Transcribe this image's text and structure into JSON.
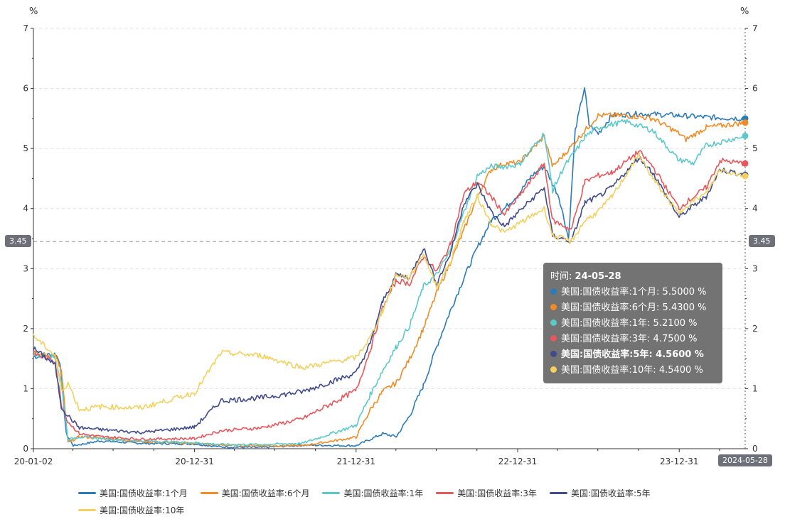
{
  "chart_data": {
    "type": "line",
    "y_unit_left": "%",
    "y_unit_right": "%",
    "ylim": [
      0,
      7
    ],
    "y_ticks": [
      "0",
      "1",
      "2",
      "3",
      "4",
      "5",
      "6",
      "7"
    ],
    "x_tick_labels": [
      "20-01-02",
      "20-12-31",
      "21-12-31",
      "22-12-31",
      "23-12-31"
    ],
    "x_range": [
      "2020-01-02",
      "2024-05-28"
    ],
    "axis_pointer": {
      "y_value": "3.45",
      "x_value": "2024-05-28"
    },
    "grid": "dashed-horizontal",
    "legend_position": "bottom",
    "series": [
      {
        "name": "美国:国债收益率:1个月",
        "color": "#2b7bb9",
        "points": [
          [
            "2020-01-02",
            1.53
          ],
          [
            "2020-02-20",
            1.58
          ],
          [
            "2020-03-02",
            1.45
          ],
          [
            "2020-03-16",
            0.25
          ],
          [
            "2020-04-01",
            0.05
          ],
          [
            "2020-06-01",
            0.13
          ],
          [
            "2020-09-01",
            0.09
          ],
          [
            "2020-12-31",
            0.08
          ],
          [
            "2021-03-01",
            0.03
          ],
          [
            "2021-06-01",
            0.02
          ],
          [
            "2021-09-01",
            0.06
          ],
          [
            "2021-12-31",
            0.05
          ],
          [
            "2022-03-01",
            0.25
          ],
          [
            "2022-04-01",
            0.2
          ],
          [
            "2022-05-01",
            0.55
          ],
          [
            "2022-06-01",
            1.05
          ],
          [
            "2022-07-01",
            1.7
          ],
          [
            "2022-08-01",
            2.3
          ],
          [
            "2022-09-01",
            2.85
          ],
          [
            "2022-10-01",
            3.35
          ],
          [
            "2022-11-01",
            3.8
          ],
          [
            "2022-12-01",
            4.0
          ],
          [
            "2023-01-03",
            4.25
          ],
          [
            "2023-02-01",
            4.55
          ],
          [
            "2023-03-01",
            4.7
          ],
          [
            "2023-04-03",
            4.2
          ],
          [
            "2023-04-25",
            3.5
          ],
          [
            "2023-05-10",
            5.3
          ],
          [
            "2023-05-31",
            6.02
          ],
          [
            "2023-06-10",
            5.4
          ],
          [
            "2023-07-01",
            5.25
          ],
          [
            "2023-08-01",
            5.55
          ],
          [
            "2023-10-01",
            5.58
          ],
          [
            "2023-12-31",
            5.55
          ],
          [
            "2024-03-01",
            5.52
          ],
          [
            "2024-05-28",
            5.5
          ]
        ]
      },
      {
        "name": "美国:国债收益率:6个月",
        "color": "#f28b25",
        "points": [
          [
            "2020-01-02",
            1.58
          ],
          [
            "2020-02-20",
            1.55
          ],
          [
            "2020-03-05",
            1.3
          ],
          [
            "2020-03-20",
            0.1
          ],
          [
            "2020-04-15",
            0.2
          ],
          [
            "2020-06-01",
            0.18
          ],
          [
            "2020-09-01",
            0.12
          ],
          [
            "2020-12-31",
            0.09
          ],
          [
            "2021-03-01",
            0.06
          ],
          [
            "2021-06-01",
            0.05
          ],
          [
            "2021-09-01",
            0.05
          ],
          [
            "2021-12-31",
            0.19
          ],
          [
            "2022-02-01",
            0.65
          ],
          [
            "2022-03-01",
            0.95
          ],
          [
            "2022-04-01",
            1.1
          ],
          [
            "2022-05-01",
            1.5
          ],
          [
            "2022-06-01",
            2.0
          ],
          [
            "2022-07-01",
            2.6
          ],
          [
            "2022-08-01",
            3.1
          ],
          [
            "2022-09-01",
            3.65
          ],
          [
            "2022-10-01",
            4.2
          ],
          [
            "2022-11-01",
            4.65
          ],
          [
            "2022-12-01",
            4.75
          ],
          [
            "2023-01-03",
            4.76
          ],
          [
            "2023-03-01",
            5.2
          ],
          [
            "2023-03-20",
            4.7
          ],
          [
            "2023-04-15",
            4.9
          ],
          [
            "2023-06-01",
            5.3
          ],
          [
            "2023-07-01",
            5.55
          ],
          [
            "2023-09-01",
            5.55
          ],
          [
            "2023-11-01",
            5.5
          ],
          [
            "2023-12-31",
            5.25
          ],
          [
            "2024-01-15",
            5.15
          ],
          [
            "2024-03-01",
            5.35
          ],
          [
            "2024-05-28",
            5.43
          ]
        ]
      },
      {
        "name": "美国:国债收益率:1年",
        "color": "#5bc8ca",
        "points": [
          [
            "2020-01-02",
            1.56
          ],
          [
            "2020-02-20",
            1.52
          ],
          [
            "2020-03-05",
            1.1
          ],
          [
            "2020-03-20",
            0.15
          ],
          [
            "2020-04-15",
            0.2
          ],
          [
            "2020-06-01",
            0.17
          ],
          [
            "2020-09-01",
            0.13
          ],
          [
            "2020-12-31",
            0.1
          ],
          [
            "2021-03-01",
            0.07
          ],
          [
            "2021-06-01",
            0.07
          ],
          [
            "2021-09-01",
            0.09
          ],
          [
            "2021-12-31",
            0.39
          ],
          [
            "2022-02-01",
            0.9
          ],
          [
            "2022-03-01",
            1.3
          ],
          [
            "2022-04-01",
            1.7
          ],
          [
            "2022-05-01",
            2.05
          ],
          [
            "2022-06-01",
            2.7
          ],
          [
            "2022-07-01",
            2.9
          ],
          [
            "2022-08-01",
            3.3
          ],
          [
            "2022-09-01",
            3.95
          ],
          [
            "2022-10-01",
            4.55
          ],
          [
            "2022-11-01",
            4.7
          ],
          [
            "2022-12-01",
            4.7
          ],
          [
            "2023-01-03",
            4.73
          ],
          [
            "2023-03-01",
            5.25
          ],
          [
            "2023-03-20",
            4.3
          ],
          [
            "2023-04-15",
            4.7
          ],
          [
            "2023-05-15",
            5.0
          ],
          [
            "2023-06-01",
            5.2
          ],
          [
            "2023-07-01",
            5.35
          ],
          [
            "2023-09-01",
            5.45
          ],
          [
            "2023-11-01",
            5.3
          ],
          [
            "2023-12-31",
            4.8
          ],
          [
            "2024-01-15",
            4.8
          ],
          [
            "2024-02-01",
            4.75
          ],
          [
            "2024-03-01",
            5.05
          ],
          [
            "2024-05-28",
            5.21
          ]
        ]
      },
      {
        "name": "美国:国债收益率:3年",
        "color": "#e8575c",
        "points": [
          [
            "2020-01-02",
            1.59
          ],
          [
            "2020-02-20",
            1.45
          ],
          [
            "2020-03-05",
            0.75
          ],
          [
            "2020-03-20",
            0.45
          ],
          [
            "2020-04-15",
            0.25
          ],
          [
            "2020-06-01",
            0.2
          ],
          [
            "2020-09-01",
            0.16
          ],
          [
            "2020-12-31",
            0.17
          ],
          [
            "2021-03-01",
            0.3
          ],
          [
            "2021-06-01",
            0.35
          ],
          [
            "2021-09-01",
            0.5
          ],
          [
            "2021-12-31",
            0.97
          ],
          [
            "2022-02-01",
            1.65
          ],
          [
            "2022-03-01",
            2.35
          ],
          [
            "2022-04-01",
            2.8
          ],
          [
            "2022-05-01",
            2.75
          ],
          [
            "2022-06-01",
            3.2
          ],
          [
            "2022-07-01",
            2.95
          ],
          [
            "2022-08-01",
            3.4
          ],
          [
            "2022-09-01",
            4.25
          ],
          [
            "2022-10-01",
            4.45
          ],
          [
            "2022-11-01",
            4.2
          ],
          [
            "2022-12-01",
            3.9
          ],
          [
            "2023-01-03",
            4.2
          ],
          [
            "2023-03-01",
            4.75
          ],
          [
            "2023-03-20",
            3.8
          ],
          [
            "2023-05-01",
            3.65
          ],
          [
            "2023-06-01",
            4.45
          ],
          [
            "2023-07-01",
            4.55
          ],
          [
            "2023-08-01",
            4.6
          ],
          [
            "2023-10-01",
            4.95
          ],
          [
            "2023-11-01",
            4.7
          ],
          [
            "2023-12-31",
            4.0
          ],
          [
            "2024-01-15",
            4.1
          ],
          [
            "2024-03-01",
            4.35
          ],
          [
            "2024-04-01",
            4.8
          ],
          [
            "2024-05-28",
            4.75
          ]
        ]
      },
      {
        "name": "美国:国债收益率:5年",
        "color": "#3f4b8c",
        "points": [
          [
            "2020-01-02",
            1.67
          ],
          [
            "2020-02-20",
            1.4
          ],
          [
            "2020-03-05",
            0.7
          ],
          [
            "2020-03-20",
            0.55
          ],
          [
            "2020-04-15",
            0.35
          ],
          [
            "2020-06-01",
            0.32
          ],
          [
            "2020-09-01",
            0.27
          ],
          [
            "2020-12-31",
            0.36
          ],
          [
            "2021-03-01",
            0.8
          ],
          [
            "2021-06-01",
            0.85
          ],
          [
            "2021-09-01",
            0.95
          ],
          [
            "2021-12-31",
            1.26
          ],
          [
            "2022-02-01",
            1.75
          ],
          [
            "2022-03-01",
            2.45
          ],
          [
            "2022-04-01",
            2.9
          ],
          [
            "2022-05-01",
            2.85
          ],
          [
            "2022-06-01",
            3.35
          ],
          [
            "2022-07-01",
            2.75
          ],
          [
            "2022-08-01",
            3.25
          ],
          [
            "2022-09-01",
            4.1
          ],
          [
            "2022-10-01",
            4.4
          ],
          [
            "2022-11-01",
            3.95
          ],
          [
            "2022-12-01",
            3.7
          ],
          [
            "2023-01-03",
            3.95
          ],
          [
            "2023-03-01",
            4.35
          ],
          [
            "2023-03-20",
            3.55
          ],
          [
            "2023-05-01",
            3.45
          ],
          [
            "2023-06-01",
            4.1
          ],
          [
            "2023-07-01",
            4.2
          ],
          [
            "2023-08-01",
            4.35
          ],
          [
            "2023-10-01",
            4.85
          ],
          [
            "2023-11-01",
            4.6
          ],
          [
            "2023-12-31",
            3.85
          ],
          [
            "2024-01-15",
            3.95
          ],
          [
            "2024-03-01",
            4.2
          ],
          [
            "2024-04-01",
            4.65
          ],
          [
            "2024-05-28",
            4.56
          ]
        ]
      },
      {
        "name": "美国:国债收益率:10年",
        "color": "#f2d160",
        "points": [
          [
            "2020-01-02",
            1.88
          ],
          [
            "2020-02-20",
            1.55
          ],
          [
            "2020-03-05",
            0.95
          ],
          [
            "2020-03-20",
            1.1
          ],
          [
            "2020-04-15",
            0.65
          ],
          [
            "2020-06-01",
            0.7
          ],
          [
            "2020-09-01",
            0.68
          ],
          [
            "2020-12-31",
            0.93
          ],
          [
            "2021-03-01",
            1.6
          ],
          [
            "2021-06-01",
            1.55
          ],
          [
            "2021-09-01",
            1.35
          ],
          [
            "2021-12-31",
            1.52
          ],
          [
            "2022-02-01",
            1.85
          ],
          [
            "2022-03-01",
            2.3
          ],
          [
            "2022-04-01",
            2.9
          ],
          [
            "2022-05-01",
            2.85
          ],
          [
            "2022-06-01",
            3.25
          ],
          [
            "2022-07-01",
            2.7
          ],
          [
            "2022-08-01",
            3.1
          ],
          [
            "2022-09-01",
            3.8
          ],
          [
            "2022-10-01",
            4.2
          ],
          [
            "2022-11-01",
            3.75
          ],
          [
            "2022-12-01",
            3.6
          ],
          [
            "2023-01-03",
            3.75
          ],
          [
            "2023-03-01",
            4.0
          ],
          [
            "2023-03-20",
            3.55
          ],
          [
            "2023-05-01",
            3.45
          ],
          [
            "2023-06-01",
            3.8
          ],
          [
            "2023-07-01",
            3.95
          ],
          [
            "2023-08-01",
            4.2
          ],
          [
            "2023-10-01",
            4.9
          ],
          [
            "2023-11-01",
            4.5
          ],
          [
            "2023-12-31",
            3.9
          ],
          [
            "2024-01-15",
            4.05
          ],
          [
            "2024-03-01",
            4.25
          ],
          [
            "2024-04-01",
            4.65
          ],
          [
            "2024-05-28",
            4.54
          ]
        ]
      }
    ]
  },
  "tooltip": {
    "title_label": "时间:",
    "title_value": "24-05-28",
    "unit": "%",
    "rows": [
      {
        "name": "美国:国债收益率:1个月",
        "value": "5.5000",
        "color": "#2b7bb9",
        "bold": false
      },
      {
        "name": "美国:国债收益率:6个月",
        "value": "5.4300",
        "color": "#f28b25",
        "bold": false
      },
      {
        "name": "美国:国债收益率:1年",
        "value": "5.2100",
        "color": "#5bc8ca",
        "bold": false
      },
      {
        "name": "美国:国债收益率:3年",
        "value": "4.7500",
        "color": "#e8575c",
        "bold": false
      },
      {
        "name": "美国:国债收益率:5年",
        "value": "4.5600",
        "color": "#3f4b8c",
        "bold": true
      },
      {
        "name": "美国:国债收益率:10年",
        "value": "4.5400",
        "color": "#f2d160",
        "bold": false
      }
    ]
  }
}
